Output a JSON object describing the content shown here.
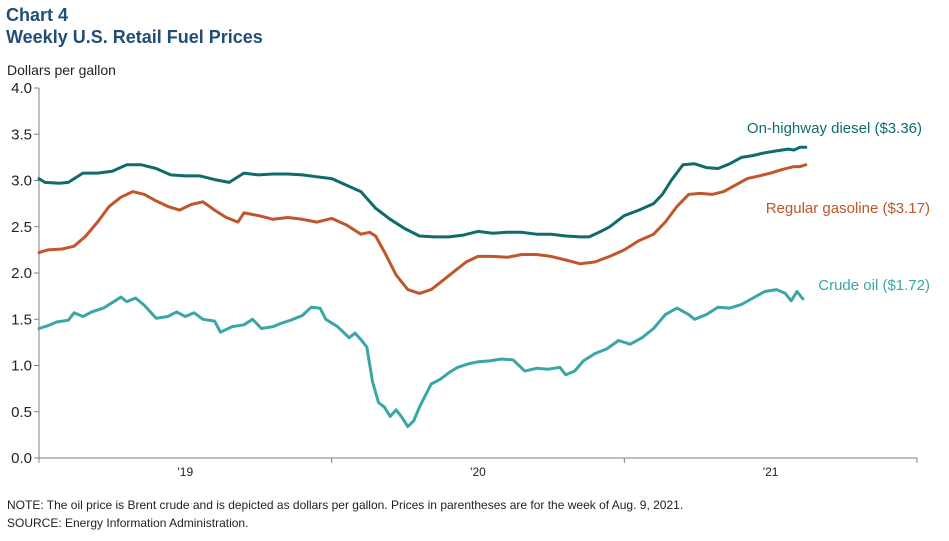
{
  "header": {
    "chart_label": "Chart 4",
    "chart_title": "Weekly U.S. Retail Fuel Prices"
  },
  "notes": {
    "note": "NOTE: The oil price is Brent crude and is depicted as dollars per gallon. Prices in parentheses are for the week of Aug. 9, 2021.",
    "source": "SOURCE: Energy Information  Administration."
  },
  "chart_data": {
    "type": "line",
    "title": "Weekly U.S. Retail Fuel Prices",
    "ylabel": "Dollars per gallon",
    "xlabel": "",
    "ylim": [
      0,
      4.0
    ],
    "yticks": [
      0.0,
      0.5,
      1.0,
      1.5,
      2.0,
      2.5,
      3.0,
      3.5,
      4.0
    ],
    "ytick_labels": [
      "0.0",
      "0.5",
      "1.0",
      "1.5",
      "2.0",
      "2.5",
      "3.0",
      "3.5",
      "4.0"
    ],
    "xlim": [
      2018.5,
      2021.5
    ],
    "year_labels": [
      {
        "x": 2019.0,
        "label": "'19"
      },
      {
        "x": 2020.0,
        "label": "'20"
      },
      {
        "x": 2021.0,
        "label": "'21"
      }
    ],
    "x_tick_positions": [
      2018.5,
      2019.5,
      2020.5,
      2021.5
    ],
    "grid": false,
    "series": [
      {
        "name": "On-highway  diesel",
        "label": "On-highway  diesel ($3.36)",
        "color": "#106b6b",
        "points": [
          [
            2018.5,
            3.02
          ],
          [
            2018.52,
            2.98
          ],
          [
            2018.57,
            2.97
          ],
          [
            2018.6,
            2.98
          ],
          [
            2018.65,
            3.08
          ],
          [
            2018.7,
            3.08
          ],
          [
            2018.75,
            3.1
          ],
          [
            2018.8,
            3.17
          ],
          [
            2018.85,
            3.17
          ],
          [
            2018.9,
            3.13
          ],
          [
            2018.95,
            3.06
          ],
          [
            2019.0,
            3.05
          ],
          [
            2019.05,
            3.05
          ],
          [
            2019.1,
            3.01
          ],
          [
            2019.15,
            2.98
          ],
          [
            2019.2,
            3.08
          ],
          [
            2019.25,
            3.06
          ],
          [
            2019.3,
            3.07
          ],
          [
            2019.35,
            3.07
          ],
          [
            2019.4,
            3.06
          ],
          [
            2019.45,
            3.04
          ],
          [
            2019.5,
            3.02
          ],
          [
            2019.55,
            2.95
          ],
          [
            2019.6,
            2.88
          ],
          [
            2019.65,
            2.7
          ],
          [
            2019.7,
            2.58
          ],
          [
            2019.75,
            2.48
          ],
          [
            2019.8,
            2.4
          ],
          [
            2019.85,
            2.39
          ],
          [
            2019.9,
            2.39
          ],
          [
            2019.95,
            2.41
          ],
          [
            2020.0,
            2.45
          ],
          [
            2020.05,
            2.43
          ],
          [
            2020.1,
            2.44
          ],
          [
            2020.15,
            2.44
          ],
          [
            2020.2,
            2.42
          ],
          [
            2020.25,
            2.42
          ],
          [
            2020.3,
            2.4
          ],
          [
            2020.35,
            2.39
          ],
          [
            2020.38,
            2.39
          ],
          [
            2020.42,
            2.45
          ],
          [
            2020.45,
            2.5
          ],
          [
            2020.5,
            2.62
          ],
          [
            2020.55,
            2.68
          ],
          [
            2020.6,
            2.75
          ],
          [
            2020.63,
            2.85
          ],
          [
            2020.66,
            3.0
          ],
          [
            2020.7,
            3.17
          ],
          [
            2020.74,
            3.18
          ],
          [
            2020.78,
            3.14
          ],
          [
            2020.82,
            3.13
          ],
          [
            2020.86,
            3.18
          ],
          [
            2020.9,
            3.25
          ],
          [
            2020.94,
            3.27
          ],
          [
            2020.98,
            3.3
          ],
          [
            2021.02,
            3.32
          ],
          [
            2021.06,
            3.34
          ],
          [
            2021.08,
            3.33
          ],
          [
            2021.1,
            3.36
          ],
          [
            2021.12,
            3.36
          ]
        ]
      },
      {
        "name": "Regular gasoline",
        "label": "Regular gasoline ($3.17)",
        "color": "#c0562b",
        "points": [
          [
            2018.5,
            2.22
          ],
          [
            2018.53,
            2.25
          ],
          [
            2018.58,
            2.26
          ],
          [
            2018.62,
            2.29
          ],
          [
            2018.66,
            2.4
          ],
          [
            2018.7,
            2.55
          ],
          [
            2018.74,
            2.72
          ],
          [
            2018.78,
            2.82
          ],
          [
            2018.82,
            2.88
          ],
          [
            2018.86,
            2.85
          ],
          [
            2018.9,
            2.78
          ],
          [
            2018.94,
            2.72
          ],
          [
            2018.98,
            2.68
          ],
          [
            2019.02,
            2.74
          ],
          [
            2019.06,
            2.77
          ],
          [
            2019.1,
            2.68
          ],
          [
            2019.14,
            2.6
          ],
          [
            2019.18,
            2.55
          ],
          [
            2019.2,
            2.65
          ],
          [
            2019.25,
            2.62
          ],
          [
            2019.3,
            2.58
          ],
          [
            2019.35,
            2.6
          ],
          [
            2019.4,
            2.58
          ],
          [
            2019.45,
            2.55
          ],
          [
            2019.5,
            2.59
          ],
          [
            2019.55,
            2.52
          ],
          [
            2019.6,
            2.42
          ],
          [
            2019.63,
            2.44
          ],
          [
            2019.65,
            2.4
          ],
          [
            2019.68,
            2.23
          ],
          [
            2019.72,
            1.98
          ],
          [
            2019.76,
            1.82
          ],
          [
            2019.8,
            1.78
          ],
          [
            2019.84,
            1.82
          ],
          [
            2019.88,
            1.92
          ],
          [
            2019.92,
            2.02
          ],
          [
            2019.96,
            2.12
          ],
          [
            2020.0,
            2.18
          ],
          [
            2020.05,
            2.18
          ],
          [
            2020.1,
            2.17
          ],
          [
            2020.15,
            2.2
          ],
          [
            2020.2,
            2.2
          ],
          [
            2020.25,
            2.18
          ],
          [
            2020.3,
            2.14
          ],
          [
            2020.35,
            2.1
          ],
          [
            2020.4,
            2.12
          ],
          [
            2020.45,
            2.18
          ],
          [
            2020.5,
            2.25
          ],
          [
            2020.55,
            2.35
          ],
          [
            2020.6,
            2.42
          ],
          [
            2020.64,
            2.55
          ],
          [
            2020.68,
            2.72
          ],
          [
            2020.72,
            2.85
          ],
          [
            2020.76,
            2.86
          ],
          [
            2020.8,
            2.85
          ],
          [
            2020.84,
            2.88
          ],
          [
            2020.88,
            2.95
          ],
          [
            2020.92,
            3.02
          ],
          [
            2020.96,
            3.05
          ],
          [
            2021.0,
            3.08
          ],
          [
            2021.04,
            3.12
          ],
          [
            2021.08,
            3.15
          ],
          [
            2021.1,
            3.15
          ],
          [
            2021.12,
            3.17
          ]
        ]
      },
      {
        "name": "Crude oil",
        "label": "Crude oil ($1.72)",
        "color": "#3aa6a6",
        "points": [
          [
            2018.5,
            1.4
          ],
          [
            2018.53,
            1.43
          ],
          [
            2018.56,
            1.47
          ],
          [
            2018.6,
            1.49
          ],
          [
            2018.62,
            1.57
          ],
          [
            2018.65,
            1.53
          ],
          [
            2018.68,
            1.58
          ],
          [
            2018.72,
            1.62
          ],
          [
            2018.76,
            1.7
          ],
          [
            2018.78,
            1.74
          ],
          [
            2018.8,
            1.69
          ],
          [
            2018.83,
            1.73
          ],
          [
            2018.86,
            1.65
          ],
          [
            2018.9,
            1.51
          ],
          [
            2018.94,
            1.53
          ],
          [
            2018.97,
            1.58
          ],
          [
            2019.0,
            1.53
          ],
          [
            2019.03,
            1.57
          ],
          [
            2019.06,
            1.5
          ],
          [
            2019.1,
            1.48
          ],
          [
            2019.12,
            1.36
          ],
          [
            2019.16,
            1.42
          ],
          [
            2019.2,
            1.44
          ],
          [
            2019.23,
            1.5
          ],
          [
            2019.26,
            1.4
          ],
          [
            2019.3,
            1.42
          ],
          [
            2019.33,
            1.46
          ],
          [
            2019.36,
            1.49
          ],
          [
            2019.4,
            1.54
          ],
          [
            2019.43,
            1.63
          ],
          [
            2019.46,
            1.62
          ],
          [
            2019.48,
            1.5
          ],
          [
            2019.52,
            1.42
          ],
          [
            2019.56,
            1.3
          ],
          [
            2019.58,
            1.35
          ],
          [
            2019.6,
            1.28
          ],
          [
            2019.62,
            1.2
          ],
          [
            2019.64,
            0.82
          ],
          [
            2019.66,
            0.6
          ],
          [
            2019.68,
            0.55
          ],
          [
            2019.7,
            0.45
          ],
          [
            2019.72,
            0.52
          ],
          [
            2019.74,
            0.44
          ],
          [
            2019.76,
            0.34
          ],
          [
            2019.78,
            0.4
          ],
          [
            2019.8,
            0.55
          ],
          [
            2019.84,
            0.8
          ],
          [
            2019.87,
            0.85
          ],
          [
            2019.9,
            0.92
          ],
          [
            2019.93,
            0.98
          ],
          [
            2019.97,
            1.02
          ],
          [
            2020.0,
            1.04
          ],
          [
            2020.04,
            1.05
          ],
          [
            2020.08,
            1.07
          ],
          [
            2020.12,
            1.06
          ],
          [
            2020.16,
            0.94
          ],
          [
            2020.2,
            0.97
          ],
          [
            2020.24,
            0.96
          ],
          [
            2020.28,
            0.98
          ],
          [
            2020.3,
            0.9
          ],
          [
            2020.33,
            0.94
          ],
          [
            2020.36,
            1.05
          ],
          [
            2020.4,
            1.13
          ],
          [
            2020.44,
            1.18
          ],
          [
            2020.48,
            1.27
          ],
          [
            2020.52,
            1.23
          ],
          [
            2020.56,
            1.3
          ],
          [
            2020.6,
            1.4
          ],
          [
            2020.64,
            1.55
          ],
          [
            2020.68,
            1.62
          ],
          [
            2020.72,
            1.55
          ],
          [
            2020.74,
            1.5
          ],
          [
            2020.78,
            1.55
          ],
          [
            2020.82,
            1.63
          ],
          [
            2020.86,
            1.62
          ],
          [
            2020.9,
            1.66
          ],
          [
            2020.94,
            1.73
          ],
          [
            2020.98,
            1.8
          ],
          [
            2021.02,
            1.82
          ],
          [
            2021.05,
            1.78
          ],
          [
            2021.07,
            1.7
          ],
          [
            2021.09,
            1.8
          ],
          [
            2021.11,
            1.72
          ]
        ]
      }
    ]
  }
}
